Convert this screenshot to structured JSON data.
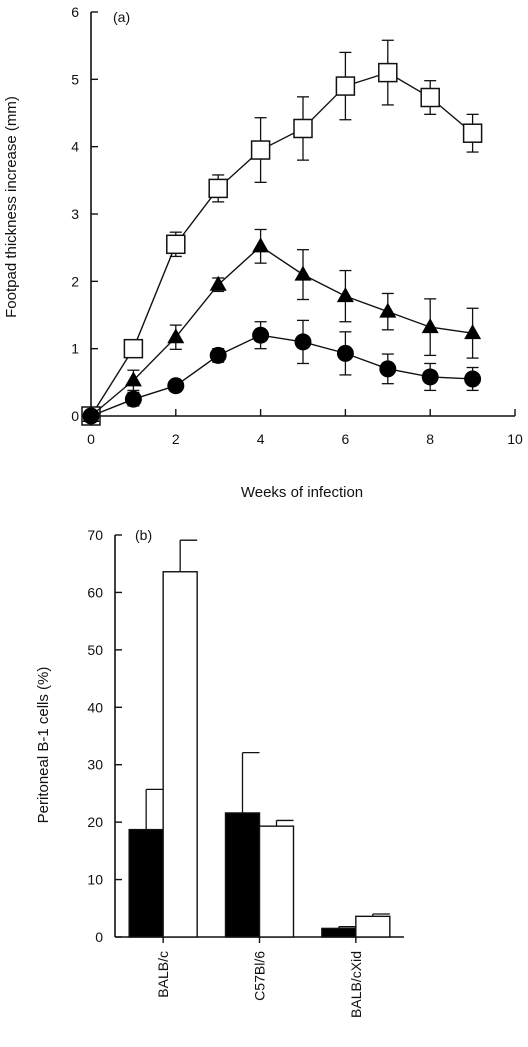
{
  "chart_data": [
    {
      "type": "line",
      "panel_label": "(a)",
      "xlabel": "Weeks of infection",
      "ylabel": "Footpad thickness increase (mm)",
      "xlim": [
        0,
        10
      ],
      "ylim": [
        0,
        6
      ],
      "xticks": [
        "0",
        "2",
        "4",
        "6",
        "8",
        "10"
      ],
      "yticks": [
        "0",
        "1",
        "2",
        "3",
        "4",
        "5",
        "6"
      ],
      "x": [
        0,
        1,
        2,
        3,
        4,
        5,
        6,
        7,
        8,
        9
      ],
      "series": [
        {
          "marker": "open-square",
          "values": [
            0,
            1.0,
            2.55,
            3.38,
            3.95,
            4.27,
            4.9,
            5.1,
            4.73,
            4.2
          ],
          "errors": [
            0,
            0.1,
            0.18,
            0.2,
            0.48,
            0.47,
            0.5,
            0.48,
            0.25,
            0.28
          ]
        },
        {
          "marker": "filled-triangle",
          "values": [
            0,
            0.53,
            1.17,
            1.95,
            2.52,
            2.1,
            1.78,
            1.55,
            1.32,
            1.23
          ],
          "errors": [
            0,
            0.15,
            0.18,
            0.1,
            0.25,
            0.37,
            0.38,
            0.27,
            0.42,
            0.37
          ]
        },
        {
          "marker": "filled-circle",
          "values": [
            0,
            0.25,
            0.45,
            0.9,
            1.2,
            1.1,
            0.93,
            0.7,
            0.58,
            0.55
          ],
          "errors": [
            0,
            0.1,
            0.06,
            0.1,
            0.2,
            0.32,
            0.32,
            0.22,
            0.2,
            0.17
          ]
        }
      ]
    },
    {
      "type": "bar",
      "panel_label": "(b)",
      "xlabel": "",
      "ylabel": "Peritoneal B-1 cells (%)",
      "ylim": [
        0,
        70
      ],
      "yticks": [
        "0",
        "10",
        "20",
        "30",
        "40",
        "50",
        "60",
        "70"
      ],
      "categories": [
        "BALB/c",
        "C57Bl/6",
        "BALB/cXid"
      ],
      "series": [
        {
          "fill": "black",
          "values": [
            18.7,
            21.6,
            1.5
          ],
          "errors": [
            7,
            10.5,
            0.3
          ]
        },
        {
          "fill": "white",
          "values": [
            63.6,
            19.3,
            3.6
          ],
          "errors": [
            5.5,
            1.0,
            0.4
          ]
        }
      ]
    }
  ]
}
